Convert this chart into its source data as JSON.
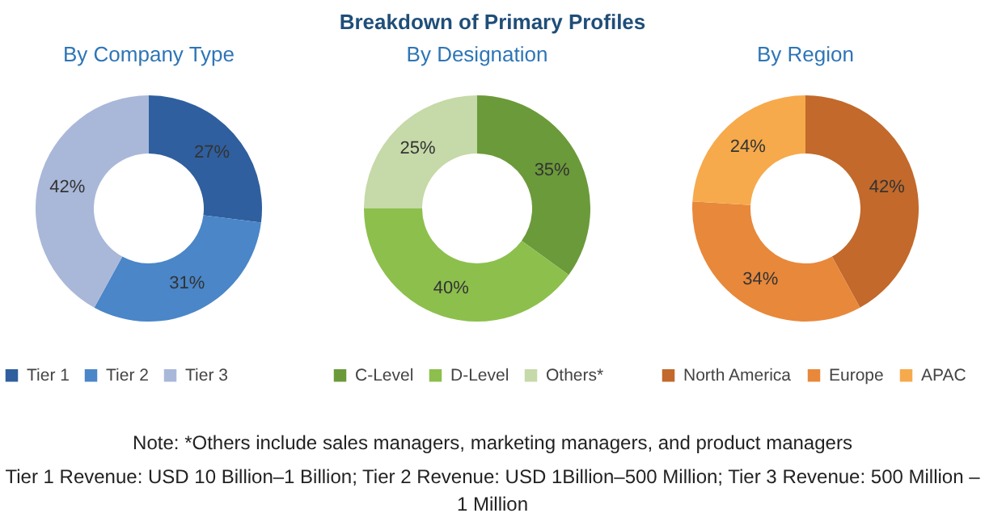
{
  "chart_data": [
    {
      "type": "donut",
      "subtitle": "By Company Type",
      "categories": [
        "Tier 1",
        "Tier 2",
        "Tier 3"
      ],
      "values": [
        27,
        31,
        42
      ],
      "value_labels": [
        "27%",
        "31%",
        "42%"
      ],
      "colors": [
        "#2f5f9e",
        "#4a86c8",
        "#a9b8d9"
      ],
      "legend": "bottom"
    },
    {
      "type": "donut",
      "title": "Breakdown of Primary Profiles",
      "subtitle": "By Designation",
      "categories": [
        "C-Level",
        "D-Level",
        "Others*"
      ],
      "values": [
        35,
        40,
        25
      ],
      "value_labels": [
        "35%",
        "40%",
        "25%"
      ],
      "colors": [
        "#6b9a3a",
        "#8dbf4d",
        "#c6d9a8"
      ],
      "legend": "bottom"
    },
    {
      "type": "donut",
      "subtitle": "By Region",
      "categories": [
        "North America",
        "Europe",
        "APAC"
      ],
      "values": [
        42,
        34,
        24
      ],
      "value_labels": [
        "42%",
        "34%",
        "24%"
      ],
      "colors": [
        "#c2692b",
        "#e8883b",
        "#f6aa4c"
      ],
      "legend": "bottom",
      "annotations": [
        "Note: *Others include sales managers, marketing managers, and product managers",
        "Tier 1 Revenue: USD 10 Billion–1 Billion; Tier 2 Revenue: USD 1Billion–500 Million; Tier 3 Revenue: 500 Million – 1 Million"
      ]
    }
  ]
}
